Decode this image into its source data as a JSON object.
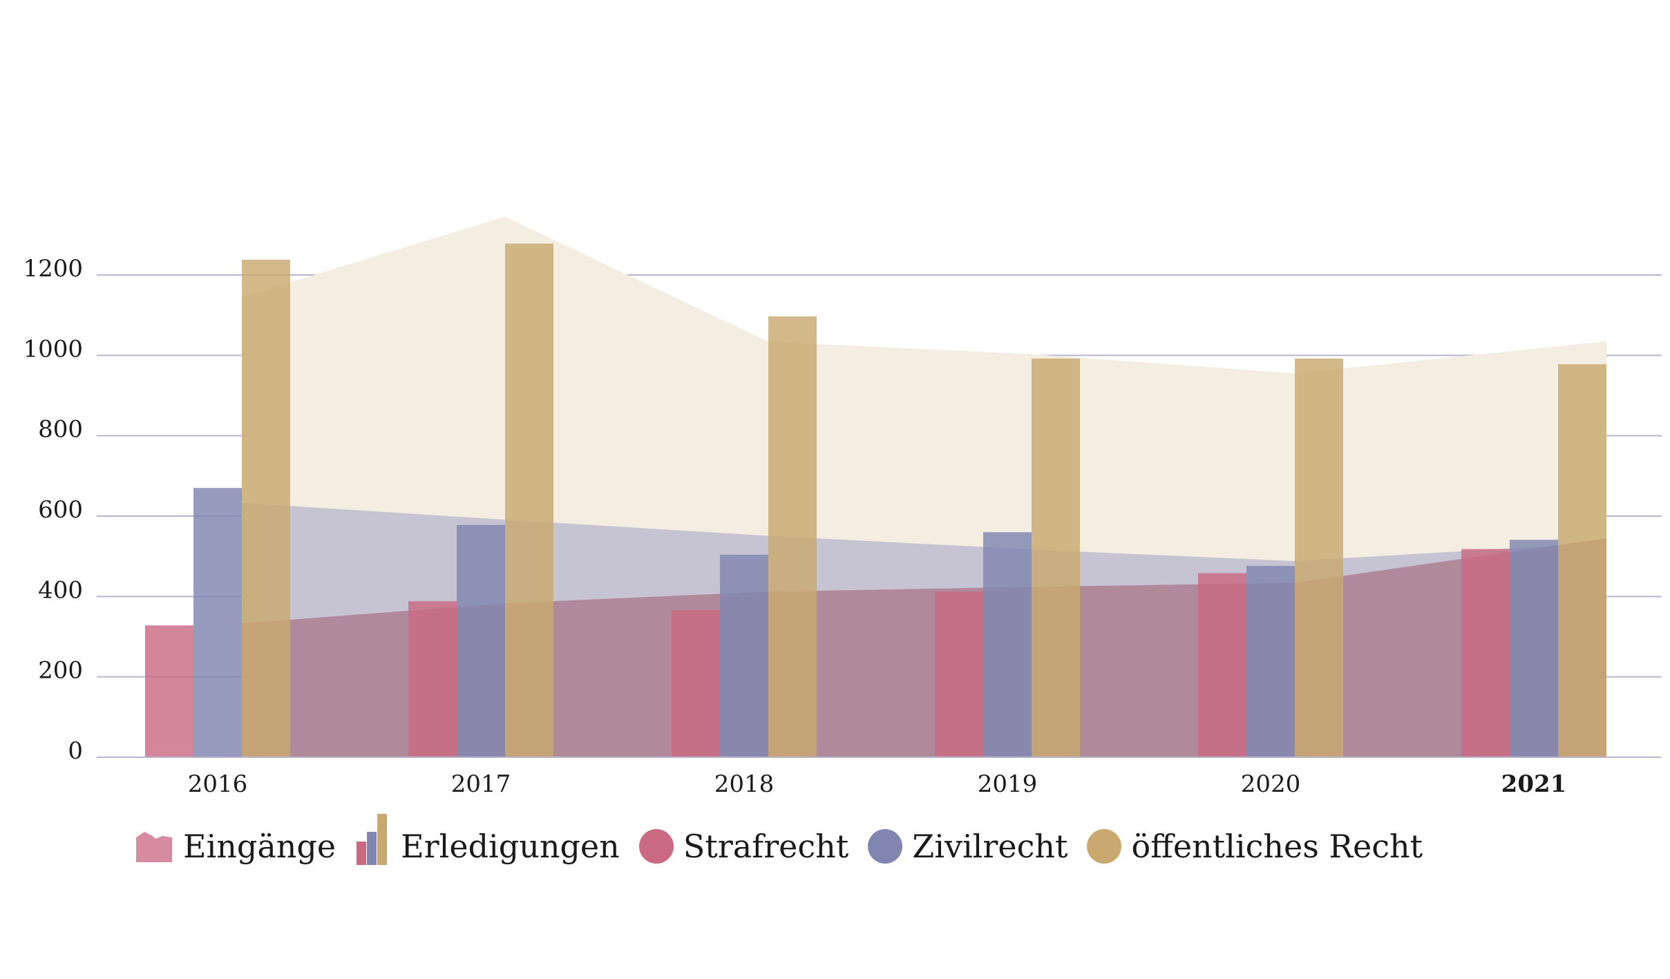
{
  "chart_data": {
    "type": "bar",
    "categories": [
      "2016",
      "2017",
      "2018",
      "2019",
      "2020",
      "2021"
    ],
    "highlight_category": "2021",
    "ylim": [
      0,
      1200
    ],
    "yticks": [
      "0",
      "200",
      "400",
      "600",
      "800",
      "1000",
      "1200"
    ],
    "grid": true,
    "legend_position": "bottom-left",
    "bar_series": [
      {
        "name": "Strafrecht",
        "values": [
          328,
          388,
          366,
          412,
          458,
          518
        ],
        "color": "#c96a82"
      },
      {
        "name": "Zivilrecht",
        "values": [
          670,
          578,
          504,
          560,
          476,
          541
        ],
        "color": "#8086b0"
      },
      {
        "name": "öffentliches Recht",
        "values": [
          1238,
          1278,
          1097,
          992,
          992,
          978
        ],
        "color": "#c9a970"
      }
    ],
    "area_series": [
      {
        "name": "Strafrecht",
        "values": [
          333,
          383,
          412,
          424,
          434,
          545
        ],
        "color": "#b08a9b"
      },
      {
        "name": "Zivilrecht",
        "values": [
          633,
          591,
          551,
          517,
          488,
          534
        ],
        "color": "#c6c4d2"
      },
      {
        "name": "öffentliches Recht",
        "values": [
          1145,
          1345,
          1034,
          1003,
          955,
          1035
        ],
        "color": "#f3ede2"
      }
    ],
    "legend": {
      "eingaenge": "Eingänge",
      "erledigungen": "Erledigungen",
      "strafrecht": "Strafrecht",
      "zivilrecht": "Zivilrecht",
      "oeffentlich": "öffentliches Recht"
    }
  }
}
